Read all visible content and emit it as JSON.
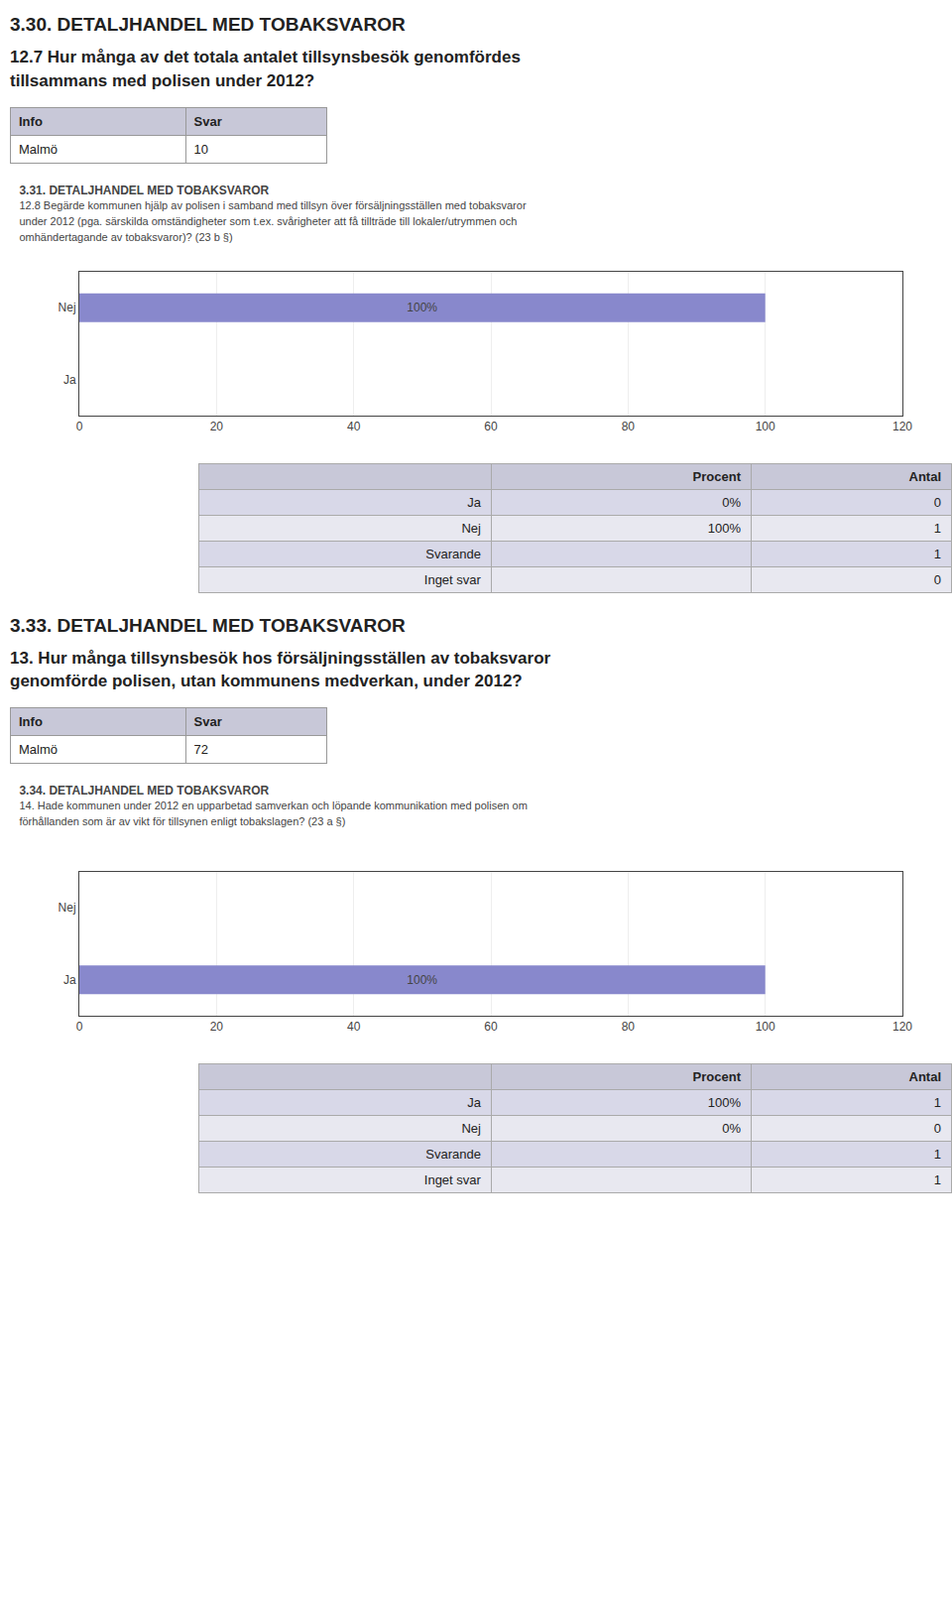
{
  "page_title": "3.30. DETALJHANDEL MED TOBAKSVAROR",
  "sections": [
    {
      "question": "12.7 Hur många av det totala antalet tillsynsbesök genomfördes\ntillsammans med polisen under 2012?",
      "info_table": {
        "headers": [
          "Info",
          "Svar"
        ],
        "rows": [
          [
            "Malmö",
            "10"
          ]
        ]
      },
      "table": {
        "headers": [
          null,
          "Procent",
          "Antal"
        ],
        "rows": [
          [
            "Ja",
            "0%",
            "0"
          ],
          [
            "Nej",
            "100%",
            "1"
          ],
          [
            "Svarande",
            null,
            "1"
          ],
          [
            "Inget svar",
            null,
            "0"
          ]
        ]
      }
    },
    {
      "title": "3.33. DETALJHANDEL MED TOBAKSVAROR",
      "question": "13. Hur många tillsynsbesök hos försäljningsställen av tobaksvaror\ngenomförde polisen, utan kommunens medverkan, under 2012?",
      "info_table": {
        "headers": [
          "Info",
          "Svar"
        ],
        "rows": [
          [
            "Malmö",
            "72"
          ]
        ]
      },
      "table": {
        "headers": [
          null,
          "Procent",
          "Antal"
        ],
        "rows": [
          [
            "Ja",
            "100%",
            "1"
          ],
          [
            "Nej",
            "0%",
            "0"
          ],
          [
            "Svarande",
            null,
            "1"
          ],
          [
            "Inget svar",
            null,
            "1"
          ]
        ]
      }
    }
  ],
  "chart_data": [
    {
      "type": "bar",
      "orientation": "horizontal",
      "title": "3.31. DETALJHANDEL MED TOBAKSVAROR",
      "subtitle": "12.8 Begärde kommunen hjälp av polisen i samband med tillsyn över försäljningsställen med tobaksvaror\nunder 2012 (pga. särskilda omständigheter som t.ex. svårigheter att få tillträde till lokaler/utrymmen och\nomhändertagande av tobaksvaror)? (23 b §)",
      "categories": [
        "Ja",
        "Nej"
      ],
      "values": [
        0,
        100
      ],
      "data_labels": true,
      "value_labels": [
        null,
        "100%"
      ],
      "color": "#8888cc",
      "xlim": [
        0,
        120
      ],
      "xticks": [
        0,
        20,
        40,
        60,
        80,
        100,
        120
      ],
      "grid": true
    },
    {
      "type": "bar",
      "orientation": "horizontal",
      "title": "3.34. DETALJHANDEL MED TOBAKSVAROR",
      "subtitle": "14. Hade kommunen under 2012 en upparbetad samverkan och löpande kommunikation med polisen om\nförhållanden som är av vikt för tillsynen enligt tobakslagen? (23 a §)",
      "categories": [
        "Ja",
        "Nej"
      ],
      "values": [
        100,
        0
      ],
      "data_labels": true,
      "value_labels": [
        "100%",
        null
      ],
      "color": "#8888cc",
      "xlim": [
        0,
        120
      ],
      "xticks": [
        0,
        20,
        40,
        60,
        80,
        100,
        120
      ],
      "grid": true
    }
  ]
}
